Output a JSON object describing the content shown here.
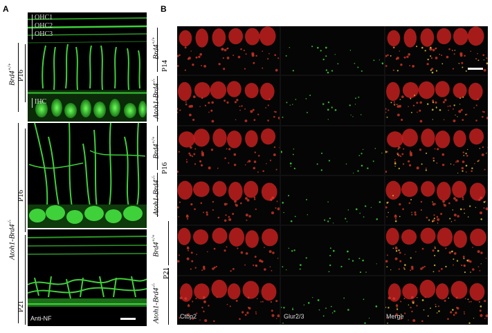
{
  "figure": {
    "panel_a_label": "A",
    "panel_b_label": "B",
    "panel_a": {
      "ohc_labels": [
        "OHC1",
        "OHC2",
        "OHC3"
      ],
      "ihc_label": "IHC",
      "genotype_wt": "Brd4",
      "genotype_wt_sup": "+/+",
      "genotype_ko": "Atoh1-Brd4",
      "genotype_ko_sup": "-/-",
      "age_top": "P16",
      "age_mid": "P16",
      "age_bot": "P21",
      "stain_label": "Anti-NF"
    },
    "panel_b": {
      "wt_name": "Brd4",
      "wt_sup": "+/+",
      "ko_name": "Atoh1-Brd4",
      "ko_sup": "-/-",
      "ages": [
        "P14",
        "P16",
        "P21"
      ],
      "channel_labels": [
        "Ctbp2",
        "Glur2/3",
        "Merge"
      ]
    },
    "colors": {
      "green": "#3fd13a",
      "red": "#c2201e",
      "bg": "#000000"
    }
  }
}
